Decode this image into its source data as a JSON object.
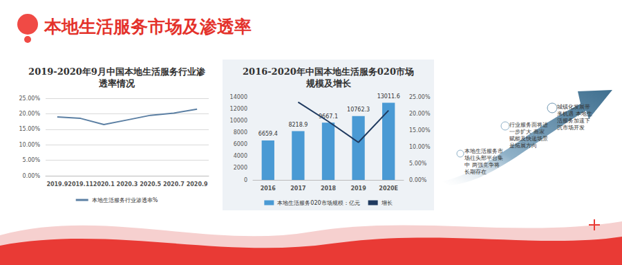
{
  "title": "本地生活服务市场及渗透率",
  "chart_data": [
    {
      "type": "line",
      "title": "2019-2020年9月中国本地生活服务行业渗透率情况",
      "categories": [
        "2019.9",
        "2019.11",
        "2020.1",
        "2020.3",
        "2020.5",
        "2020.7",
        "2020.9"
      ],
      "series": [
        {
          "name": "本地生活服务行业渗透率%",
          "color": "#5b7fa3",
          "marker": "none",
          "values": [
            19.0,
            18.5,
            16.5,
            18.0,
            19.5,
            20.2,
            21.5
          ]
        }
      ],
      "ylim": [
        0,
        25
      ],
      "yticks": [
        {
          "value": 0,
          "label": "0.00%"
        },
        {
          "value": 5,
          "label": "5.00%"
        },
        {
          "value": 10,
          "label": "10.00%"
        },
        {
          "value": 15,
          "label": "15.00%"
        },
        {
          "value": 20,
          "label": "20.00%"
        },
        {
          "value": 25,
          "label": "25.00%"
        }
      ],
      "grid": true,
      "legend": "bottom"
    },
    {
      "type": "bar",
      "title": "2016-2020年中国本地生活服务020市场规模及增长",
      "categories": [
        "2016",
        "2017",
        "2018",
        "2019",
        "2020E"
      ],
      "series": [
        {
          "name": "本地生活服务020市场规模：亿元",
          "type": "bar",
          "color": "#4a9ad4",
          "data_labels": true,
          "values": [
            6659.4,
            8218.9,
            9667.1,
            10762.3,
            13011.6
          ]
        },
        {
          "name": "增长",
          "type": "line",
          "color": "#1f3a5f",
          "axis": "y2",
          "marker": "none",
          "values": [
            null,
            23.4,
            17.6,
            11.3,
            20.9
          ]
        }
      ],
      "ylim": [
        0,
        14000
      ],
      "yticks": [
        0,
        2000,
        4000,
        6000,
        8000,
        10000,
        12000,
        14000
      ],
      "y2lim": [
        0,
        25
      ],
      "y2ticks": [
        {
          "value": 0,
          "label": "0.00%"
        },
        {
          "value": 5,
          "label": "5.00%"
        },
        {
          "value": 10,
          "label": "10.00%"
        },
        {
          "value": 15,
          "label": "15.00%"
        },
        {
          "value": 20,
          "label": "20.00%"
        },
        {
          "value": 25,
          "label": "25.00%"
        }
      ],
      "grid": false,
      "legend": "bottom"
    }
  ],
  "diagram": {
    "steps": [
      {
        "text": "本地生活服务市场往头部平台集中 两强竞争将长期存在"
      },
      {
        "text": "行业服务面将进一步扩大 商家赋能及快递场景是拓展方向"
      },
      {
        "text": "城镇化发展带来机遇 本地生活服务加速下沉市场开发"
      }
    ]
  }
}
